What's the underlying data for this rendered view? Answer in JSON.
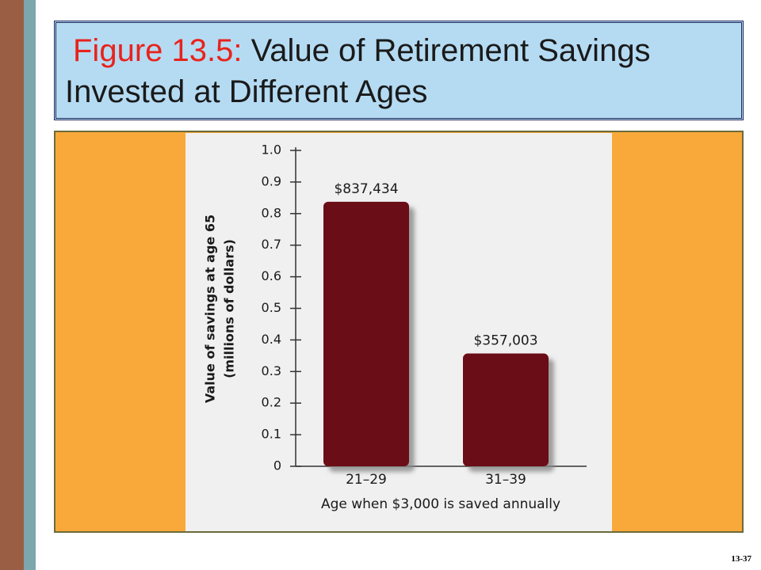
{
  "slide": {
    "title_prefix": "Figure 13.5:",
    "title_rest": "Value of Retirement Savings Invested at Different Ages",
    "page_number": "13-37"
  },
  "chart_data": {
    "type": "bar",
    "y_label": [
      "Value of savings at age 65",
      "(millions of dollars)"
    ],
    "x_label": "Age when $3,000 is saved annually",
    "categories": [
      "21–29",
      "31–39"
    ],
    "values": [
      0.837434,
      0.357003
    ],
    "value_labels": [
      "$837,434",
      "$357,003"
    ],
    "color": "#6b0a18",
    "ylim": [
      0,
      1
    ],
    "yticks": [
      0,
      0.1,
      0.2,
      0.3,
      0.4,
      0.5,
      0.6,
      0.7,
      0.8,
      0.9,
      {
        "value": 1,
        "label": "1.0"
      }
    ]
  }
}
